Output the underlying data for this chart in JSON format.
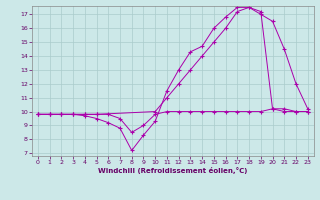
{
  "xlabel": "Windchill (Refroidissement éolien,°C)",
  "background_color": "#cce8e8",
  "grid_color": "#aacccc",
  "line_color": "#aa00aa",
  "xlim": [
    -0.5,
    23.5
  ],
  "ylim": [
    6.8,
    17.6
  ],
  "xticks": [
    0,
    1,
    2,
    3,
    4,
    5,
    6,
    7,
    8,
    9,
    10,
    11,
    12,
    13,
    14,
    15,
    16,
    17,
    18,
    19,
    20,
    21,
    22,
    23
  ],
  "yticks": [
    7,
    8,
    9,
    10,
    11,
    12,
    13,
    14,
    15,
    16,
    17
  ],
  "line1_x": [
    0,
    1,
    2,
    3,
    4,
    5,
    10,
    11,
    12,
    13,
    14,
    15,
    16,
    17,
    18,
    19,
    20,
    21,
    22,
    23
  ],
  "line1_y": [
    9.8,
    9.8,
    9.8,
    9.8,
    9.8,
    9.8,
    10.0,
    11.0,
    12.0,
    13.0,
    14.0,
    15.0,
    16.0,
    17.2,
    17.5,
    17.2,
    10.2,
    10.0,
    10.0,
    10.0
  ],
  "line2_x": [
    0,
    1,
    2,
    3,
    4,
    5,
    6,
    7,
    8,
    9,
    10,
    11,
    12,
    13,
    14,
    15,
    16,
    17,
    18,
    19,
    20,
    21,
    22,
    23
  ],
  "line2_y": [
    9.8,
    9.8,
    9.8,
    9.8,
    9.7,
    9.5,
    9.2,
    8.8,
    7.2,
    8.3,
    9.3,
    11.5,
    13.0,
    14.3,
    14.7,
    16.0,
    16.8,
    17.5,
    17.5,
    17.0,
    16.5,
    14.5,
    12.0,
    10.2
  ],
  "line3_x": [
    0,
    1,
    2,
    3,
    4,
    5,
    6,
    7,
    8,
    9,
    10,
    11,
    12,
    13,
    14,
    15,
    16,
    17,
    18,
    19,
    20,
    21,
    22,
    23
  ],
  "line3_y": [
    9.8,
    9.8,
    9.8,
    9.8,
    9.8,
    9.8,
    9.8,
    9.5,
    8.5,
    9.0,
    9.8,
    10.0,
    10.0,
    10.0,
    10.0,
    10.0,
    10.0,
    10.0,
    10.0,
    10.0,
    10.2,
    10.2,
    10.0,
    10.0
  ]
}
